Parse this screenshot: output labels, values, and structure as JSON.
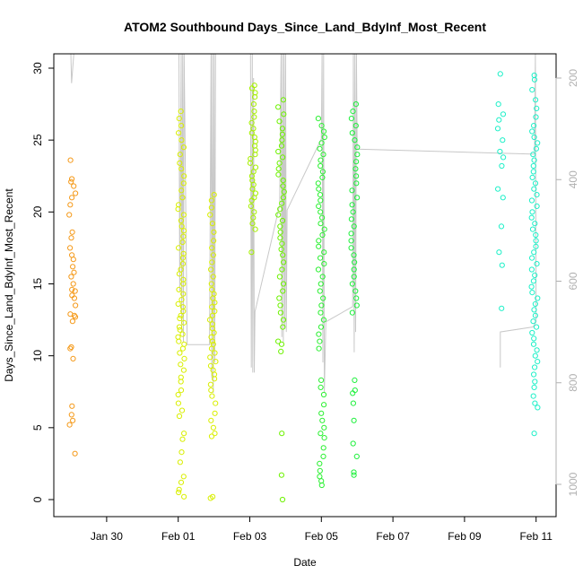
{
  "chart_data": {
    "type": "scatter",
    "title": "ATOM2 Southbound Days_Since_Land_BdyInf_Most_Recent",
    "xlabel": "Date",
    "ylabel": "Days_Since_Land_BdyInf_Most_Recent",
    "x_tick_labels": [
      "Jan 30",
      "Feb 01",
      "Feb 03",
      "Feb 05",
      "Feb 07",
      "Feb 09",
      "Feb 11"
    ],
    "y_tick_labels": [
      "0",
      "5",
      "10",
      "15",
      "20",
      "25",
      "30"
    ],
    "y2_tick_labels": [
      "200",
      "400",
      "600",
      "800",
      "1000"
    ],
    "ylim": [
      0,
      30
    ],
    "y2lim": [
      1050,
      150
    ],
    "y2_reversed": true,
    "grid": false,
    "point_style": "open-circle",
    "clusters": [
      {
        "date": "2024-01-29",
        "hour": 1.0,
        "color": "#f59a1a",
        "values": [
          3.2,
          5.2,
          5.5,
          5.9,
          6.5,
          9.8,
          10.5,
          10.6,
          12.4,
          12.7,
          12.8,
          12.9,
          13.5,
          14.0,
          14.2,
          14.5,
          14.6,
          15.0,
          15.5,
          15.8,
          16.2,
          16.7,
          17.0,
          17.5,
          18.2,
          18.6,
          19.8,
          20.5,
          21.0,
          21.3,
          21.8,
          22.1,
          22.3,
          23.6
        ]
      },
      {
        "date": "2024-02-01",
        "hour": 2.0,
        "color": "#d9ef00",
        "values": [
          0.2,
          0.5,
          0.7,
          1.2,
          1.6,
          2.6,
          3.3,
          4.2,
          4.6,
          5.8,
          6.2,
          6.7,
          7.3,
          7.6,
          8.2,
          8.5,
          9.0,
          9.4,
          9.8,
          10.2,
          10.5,
          10.8,
          11.0,
          11.3,
          11.5,
          11.8,
          12.0,
          12.3,
          12.6,
          12.8,
          13.1,
          13.4,
          13.6,
          13.9,
          14.3,
          14.6,
          15.0,
          15.3,
          15.7,
          16.0,
          16.4,
          16.8,
          17.1,
          17.5,
          17.9,
          18.3,
          18.7,
          19.0,
          19.4,
          19.8,
          20.2,
          20.5,
          21.0,
          21.5,
          22.0,
          22.5,
          23.0,
          23.4,
          24.0,
          24.5,
          25.0,
          25.5,
          26.0,
          26.5,
          27.0
        ]
      },
      {
        "date": "2024-02-01",
        "hour": 23.0,
        "color": "#d9ef00",
        "values": [
          0.1,
          0.2,
          4.4,
          4.6,
          5.0,
          5.5,
          6.0,
          6.7,
          7.2,
          7.6,
          8.0,
          8.4,
          8.7,
          9.0,
          9.3,
          9.6,
          9.9,
          10.2,
          10.5,
          10.8,
          11.0,
          11.3,
          11.6,
          11.9,
          12.2,
          12.5,
          12.8,
          13.1,
          13.4,
          13.7,
          14.0,
          14.3,
          14.6,
          15.0,
          15.5,
          16.0,
          16.5,
          17.0,
          17.5,
          18.0,
          18.6,
          19.2,
          19.8,
          20.3,
          20.8,
          21.2
        ]
      },
      {
        "date": "2024-02-03",
        "hour": 2.0,
        "color": "#a6f000",
        "values": [
          17.2,
          18.8,
          19.2,
          19.6,
          20.0,
          20.4,
          20.8,
          21.0,
          21.3,
          21.6,
          21.9,
          22.2,
          22.5,
          22.8,
          23.1,
          23.4,
          23.7,
          24.0,
          24.3,
          24.6,
          24.9,
          25.2,
          25.5,
          25.8,
          26.2,
          26.6,
          27.0,
          27.5,
          28.0,
          28.3,
          28.6,
          28.8
        ]
      },
      {
        "date": "2024-02-03",
        "hour": 21.0,
        "color": "#6df200",
        "values": [
          0.0,
          1.7,
          4.6,
          10.3,
          10.8,
          11.0,
          12.0,
          12.5,
          13.0,
          13.5,
          14.0,
          14.5,
          15.0,
          15.5,
          16.0,
          16.5,
          17.0,
          17.4,
          17.8,
          18.2,
          18.6,
          19.0,
          19.4,
          19.8,
          20.2,
          20.6,
          21.0,
          21.4,
          21.8,
          22.2,
          22.6,
          23.0,
          23.4,
          23.8,
          24.2,
          24.6,
          25.0,
          25.4,
          25.8,
          26.3,
          26.8,
          27.3,
          27.8
        ]
      },
      {
        "date": "2024-02-05",
        "hour": 0.0,
        "color": "#2bf032",
        "values": [
          1.0,
          1.3,
          1.6,
          2.0,
          2.5,
          3.0,
          3.6,
          4.3,
          4.6,
          5.0,
          5.5,
          6.0,
          6.6,
          7.3,
          7.8,
          8.3,
          10.5,
          11.0,
          11.5,
          12.0,
          12.5,
          13.0,
          13.5,
          14.0,
          14.5,
          15.0,
          15.5,
          16.0,
          16.4,
          16.8,
          17.2,
          17.6,
          18.0,
          18.4,
          18.8,
          19.2,
          19.6,
          20.0,
          20.4,
          20.8,
          21.2,
          21.6,
          22.0,
          22.4,
          22.8,
          23.2,
          23.6,
          24.0,
          24.4,
          24.8,
          25.2,
          25.6,
          26.0,
          26.5
        ]
      },
      {
        "date": "2024-02-05",
        "hour": 22.0,
        "color": "#1ef03c",
        "values": [
          1.7,
          1.9,
          3.0,
          3.9,
          5.5,
          6.7,
          7.4,
          7.6,
          8.3,
          13.0,
          13.5,
          14.0,
          14.5,
          15.0,
          15.5,
          16.0,
          16.5,
          17.0,
          17.5,
          18.0,
          18.5,
          19.0,
          19.5,
          20.0,
          20.5,
          21.0,
          21.5,
          22.0,
          22.5,
          23.0,
          23.5,
          24.0,
          24.5,
          25.0,
          25.5,
          26.0,
          26.5,
          27.0,
          27.5
        ]
      },
      {
        "date": "2024-02-10",
        "hour": 0.0,
        "color": "#1ef0c8",
        "values": [
          13.3,
          16.3,
          17.2,
          19.0,
          21.0,
          21.6,
          23.2,
          23.8,
          24.2,
          25.0,
          25.8,
          26.4,
          26.8,
          27.5,
          29.6
        ]
      },
      {
        "date": "2024-02-10",
        "hour": 23.0,
        "color": "#1ef0c8",
        "values": [
          4.6,
          6.4,
          6.7,
          7.2,
          7.8,
          8.2,
          8.7,
          9.2,
          9.6,
          10.0,
          10.4,
          10.8,
          11.2,
          11.6,
          12.0,
          12.4,
          12.8,
          13.2,
          13.6,
          14.0,
          14.4,
          14.8,
          15.2,
          15.6,
          16.0,
          16.4,
          16.8,
          17.2,
          17.6,
          18.0,
          18.4,
          18.8,
          19.2,
          19.6,
          20.0,
          20.4,
          20.8,
          21.2,
          21.6,
          22.0,
          22.4,
          22.8,
          23.2,
          23.6,
          24.0,
          24.4,
          24.8,
          25.2,
          25.6,
          26.0,
          26.6,
          27.2,
          27.8,
          28.5,
          29.2,
          29.5
        ]
      }
    ],
    "track": {
      "color": "#c8c8c8",
      "series_axis": "y2",
      "points": [
        [
          "2024-01-29 00:00",
          150
        ],
        [
          "2024-01-29 00:30",
          210
        ],
        [
          "2024-01-29 02:00",
          150
        ],
        [
          "2024-02-01 00:30",
          150
        ],
        [
          "2024-02-01 01:00",
          620
        ],
        [
          "2024-02-01 02:00",
          150
        ],
        [
          "2024-02-01 02:20",
          700
        ],
        [
          "2024-02-01 03:00",
          150
        ],
        [
          "2024-02-01 03:30",
          720
        ],
        [
          "2024-02-01 04:00",
          150
        ],
        [
          "2024-02-01 06:00",
          725
        ],
        [
          "2024-02-01 21:00",
          725
        ],
        [
          "2024-02-01 22:00",
          150
        ],
        [
          "2024-02-01 22:30",
          790
        ],
        [
          "2024-02-01 23:00",
          150
        ],
        [
          "2024-02-01 23:30",
          820
        ],
        [
          "2024-02-02 00:00",
          150
        ],
        [
          "2024-02-02 00:30",
          760
        ],
        [
          "2024-02-02 01:00",
          150
        ],
        [
          "2024-02-03 00:30",
          150
        ],
        [
          "2024-02-03 01:00",
          770
        ],
        [
          "2024-02-03 01:40",
          150
        ],
        [
          "2024-02-03 02:00",
          780
        ],
        [
          "2024-02-03 02:30",
          200
        ],
        [
          "2024-02-03 03:00",
          780
        ],
        [
          "2024-02-03 03:30",
          660
        ],
        [
          "2024-02-03 20:00",
          450
        ],
        [
          "2024-02-03 21:00",
          150
        ],
        [
          "2024-02-03 21:30",
          710
        ],
        [
          "2024-02-03 22:00",
          150
        ],
        [
          "2024-02-03 22:30",
          720
        ],
        [
          "2024-02-03 23:00",
          150
        ],
        [
          "2024-02-03 23:30",
          690
        ],
        [
          "2024-02-04 00:00",
          150
        ],
        [
          "2024-02-04 00:30",
          700
        ],
        [
          "2024-02-04 01:00",
          460
        ],
        [
          "2024-02-05 00:00",
          320
        ],
        [
          "2024-02-05 00:30",
          150
        ],
        [
          "2024-02-05 01:00",
          760
        ],
        [
          "2024-02-05 01:30",
          150
        ],
        [
          "2024-02-05 02:00",
          820
        ],
        [
          "2024-02-05 03:00",
          680
        ],
        [
          "2024-02-05 21:00",
          650
        ],
        [
          "2024-02-05 21:30",
          150
        ],
        [
          "2024-02-05 22:00",
          740
        ],
        [
          "2024-02-05 22:30",
          150
        ],
        [
          "2024-02-05 23:00",
          700
        ],
        [
          "2024-02-05 23:30",
          150
        ],
        [
          "2024-02-06 00:00",
          340
        ],
        [
          "2024-02-10 23:00",
          350
        ],
        [
          "2024-02-10 23:30",
          150
        ],
        [
          "2024-02-11 00:00",
          680
        ],
        [
          "2024-02-10 22:00",
          690
        ],
        [
          "2024-02-10 00:00",
          700
        ],
        [
          "2024-02-10 00:00",
          770
        ]
      ]
    }
  }
}
